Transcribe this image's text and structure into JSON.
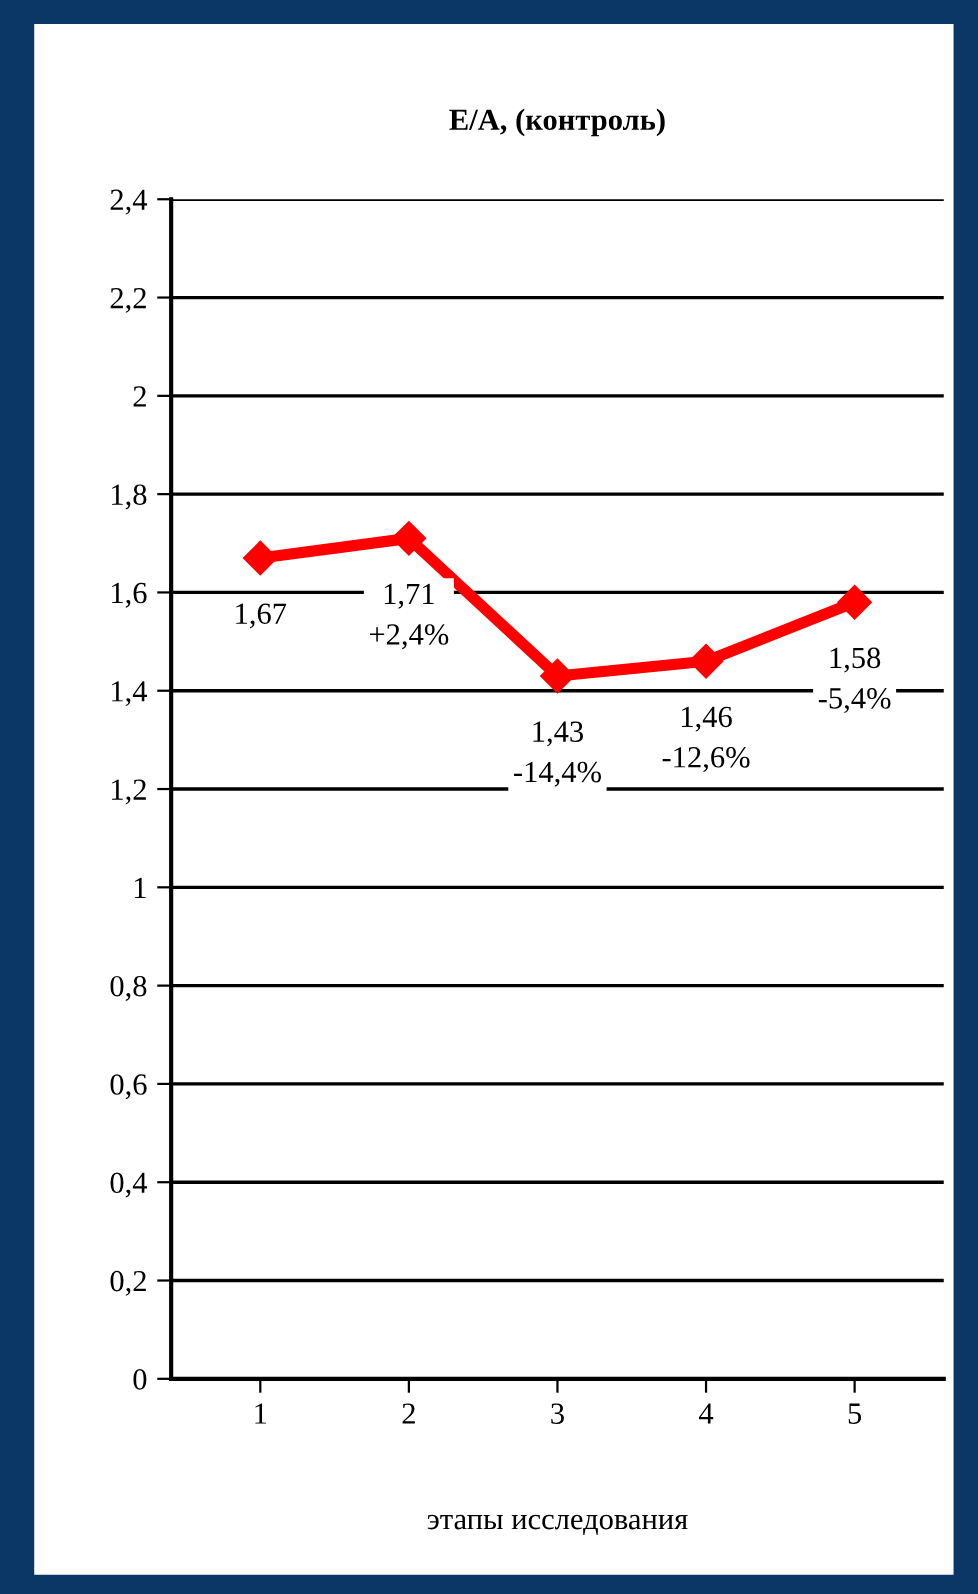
{
  "chart_data": {
    "type": "line",
    "title": "E/A, (контроль)",
    "xlabel": "этапы исследования",
    "categories": [
      "1",
      "2",
      "3",
      "4",
      "5"
    ],
    "series": [
      {
        "color": "#ff0000",
        "values": [
          1.67,
          1.71,
          1.43,
          1.46,
          1.58
        ],
        "value_labels": [
          "1,67",
          "1,71\n+2,4%",
          "1,43\n-14,4%",
          "1,46\n-12,6%",
          "1,58\n-5,4%"
        ]
      }
    ],
    "ylim": [
      0,
      2.4
    ],
    "yticks": [
      0,
      {
        "value": 0.2,
        "label": "0,2"
      },
      {
        "value": 0.4,
        "label": "0,4"
      },
      {
        "value": 0.6,
        "label": "0,6"
      },
      {
        "value": 0.8,
        "label": "0,8"
      },
      1,
      {
        "value": 1.2,
        "label": "1,2"
      },
      {
        "value": 1.4,
        "label": "1,4"
      },
      {
        "value": 1.6,
        "label": "1,6"
      },
      {
        "value": 1.8,
        "label": "1,8"
      },
      2,
      {
        "value": 2.2,
        "label": "2,2"
      },
      {
        "value": 2.4,
        "label": "2,4"
      }
    ],
    "grid": "y",
    "marker": "diamond",
    "line_style": "solid"
  }
}
